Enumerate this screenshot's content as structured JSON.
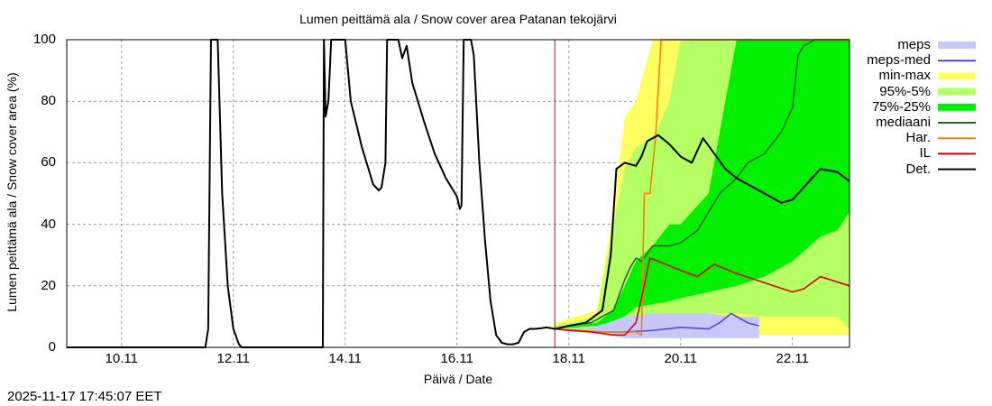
{
  "title": "Lumen peittämä ala / Snow cover area Patanan tekojärvi",
  "xlabel": "Päivä / Date",
  "ylabel": "Lumen peittämä ala / Snow cover area (%)",
  "timestamp": "2025-11-17 17:45:07 EET",
  "colors": {
    "meps": "#c8c8f8",
    "meps_med": "#4a4ad8",
    "minmax": "#ffff60",
    "p95_5": "#b4ff64",
    "p75_25": "#00f000",
    "mediaani": "#1a6e1a",
    "har": "#ff8000",
    "il": "#e00000",
    "det": "#000000",
    "now": "#d00000"
  },
  "chart_data": {
    "type": "line",
    "title": "Lumen peittämä ala / Snow cover area Patanan tekojärvi",
    "xlabel": "Päivä / Date",
    "ylabel": "Lumen peittämä ala / Snow cover area (%)",
    "ylim": [
      0,
      100
    ],
    "yticks": [
      "0",
      "20",
      "40",
      "60",
      "80",
      "100"
    ],
    "xticks": [
      "10.11",
      "12.11",
      "14.11",
      "16.11",
      "18.11",
      "20.11",
      "22.11"
    ],
    "x_units": "days since 10.11 00:00",
    "xlim": [
      -0.98,
      13.02
    ],
    "now_marker_x": 7.75,
    "grid": true,
    "legend": [
      "meps",
      "meps-med",
      "min-max",
      "95%-5%",
      "75%-25%",
      "mediaani",
      "Har.",
      "IL",
      "Det."
    ],
    "legend_position": "right outside",
    "series": [
      {
        "name": "Det. (history)",
        "x": [
          -0.98,
          1.5,
          1.55,
          1.6,
          1.72,
          1.8,
          1.9,
          2.0,
          2.1,
          2.15,
          3.6,
          3.62,
          3.65,
          3.7,
          3.75,
          3.85,
          4.0,
          4.1,
          4.3,
          4.5,
          4.6,
          4.65,
          4.72,
          4.75,
          4.95,
          5.02,
          5.1,
          5.15,
          5.2,
          5.4,
          5.6,
          5.8,
          6.0,
          6.05,
          6.08,
          6.12,
          6.25,
          6.3,
          6.4,
          6.5,
          6.6,
          6.7,
          6.8,
          6.9,
          7.0,
          7.1,
          7.2,
          7.3,
          7.4,
          7.5,
          7.6,
          7.75
        ],
        "values": [
          0,
          0,
          6,
          100,
          100,
          50,
          20,
          6,
          1,
          0,
          0,
          100,
          75,
          80,
          100,
          100,
          100,
          80,
          65,
          53,
          51,
          52,
          60,
          100,
          100,
          94,
          98,
          92,
          86,
          74,
          63,
          55,
          49,
          45,
          46,
          100,
          100,
          95,
          60,
          35,
          15,
          4,
          1.5,
          1,
          1,
          1.5,
          5,
          6,
          6,
          6.2,
          6.5,
          6
        ]
      },
      {
        "name": "Det.",
        "x": [
          7.75,
          8.0,
          8.3,
          8.6,
          8.75,
          8.85,
          9.0,
          9.2,
          9.3,
          9.4,
          9.6,
          9.8,
          10.0,
          10.2,
          10.4,
          10.6,
          10.8,
          11.0,
          11.3,
          11.6,
          11.8,
          12.0,
          12.2,
          12.5,
          12.8,
          13.02
        ],
        "values": [
          6,
          7,
          8,
          12,
          30,
          58,
          60,
          59,
          62,
          67,
          69,
          66,
          62,
          60,
          68,
          63,
          58,
          55,
          52,
          49,
          47,
          48,
          52,
          58,
          57,
          54
        ]
      },
      {
        "name": "IL",
        "x": [
          7.75,
          8.0,
          8.4,
          8.8,
          9.0,
          9.2,
          9.3,
          9.45,
          9.6,
          10.0,
          10.3,
          10.6,
          11.0,
          11.5,
          12.0,
          12.2,
          12.5,
          13.02
        ],
        "values": [
          6,
          5.5,
          5,
          4,
          4,
          8,
          16,
          29,
          28,
          25,
          23,
          27,
          24,
          21,
          18,
          19,
          23,
          20
        ]
      },
      {
        "name": "Har.",
        "x": [
          7.75,
          8.6,
          9.2,
          9.3,
          9.35,
          9.45,
          9.55,
          9.65,
          10.0,
          13.02
        ],
        "values": [
          6,
          5,
          5,
          4,
          50,
          50,
          68,
          100,
          100,
          100
        ]
      },
      {
        "name": "mediaani",
        "x": [
          7.75,
          8.0,
          8.4,
          8.8,
          9.0,
          9.1,
          9.2,
          9.3,
          9.5,
          9.6,
          9.8,
          10.0,
          10.3,
          10.5,
          10.7,
          11.0,
          11.2,
          11.5,
          11.8,
          12.0,
          12.1,
          12.2,
          12.4,
          13.02
        ],
        "values": [
          6,
          7,
          8,
          12,
          22,
          26,
          29,
          28,
          33,
          33,
          33,
          34,
          38,
          44,
          50,
          55,
          60,
          63,
          70,
          78,
          95,
          98,
          100,
          100
        ]
      },
      {
        "name": "meps-med",
        "x": [
          7.75,
          8.5,
          9.0,
          9.5,
          10.0,
          10.5,
          10.7,
          10.9,
          11.2,
          11.4
        ],
        "values": [
          6,
          5,
          5,
          5.5,
          6.5,
          6,
          8,
          11,
          8,
          7
        ]
      }
    ],
    "bands": [
      {
        "name": "min-max",
        "x": [
          7.75,
          8.5,
          8.8,
          9.0,
          9.2,
          9.5,
          9.8,
          10.0,
          10.5,
          11.0,
          11.5,
          12.0,
          12.5,
          13.02
        ],
        "low": [
          6,
          5,
          5,
          4,
          4,
          4,
          4,
          4,
          4,
          4,
          4,
          4,
          4,
          4
        ],
        "high": [
          8,
          12,
          45,
          75,
          80,
          100,
          100,
          100,
          100,
          100,
          100,
          100,
          100,
          100
        ]
      },
      {
        "name": "95%-5%",
        "x": [
          7.75,
          8.5,
          8.8,
          9.0,
          9.2,
          9.5,
          9.8,
          10.0,
          10.5,
          11.0,
          11.5,
          12.0,
          12.5,
          12.8,
          13.02
        ],
        "low": [
          6,
          6,
          7,
          8,
          10,
          11,
          11,
          11,
          11,
          11,
          10,
          10,
          10,
          10,
          6
        ],
        "high": [
          7,
          10,
          40,
          58,
          65,
          68,
          80,
          100,
          100,
          100,
          100,
          100,
          100,
          100,
          100
        ]
      },
      {
        "name": "75%-25%",
        "x": [
          7.75,
          8.5,
          8.8,
          9.0,
          9.2,
          9.5,
          9.8,
          10.0,
          10.5,
          11.0,
          11.5,
          12.0,
          12.5,
          12.8,
          13.02
        ],
        "low": [
          6,
          7,
          8,
          10,
          13,
          14,
          15,
          16,
          18,
          20,
          23,
          28,
          36,
          38,
          44
        ],
        "high": [
          6,
          8,
          12,
          20,
          28,
          33,
          40,
          40,
          50,
          100,
          100,
          100,
          100,
          100,
          100
        ]
      },
      {
        "name": "meps",
        "x": [
          7.75,
          8.3,
          8.7,
          9.0,
          9.5,
          10.0,
          10.5,
          11.0,
          11.4
        ],
        "low": [
          6,
          5,
          4,
          3,
          3,
          3,
          3,
          3,
          3
        ],
        "high": [
          6,
          6,
          8,
          10,
          11,
          11,
          11,
          10,
          10
        ]
      }
    ]
  }
}
